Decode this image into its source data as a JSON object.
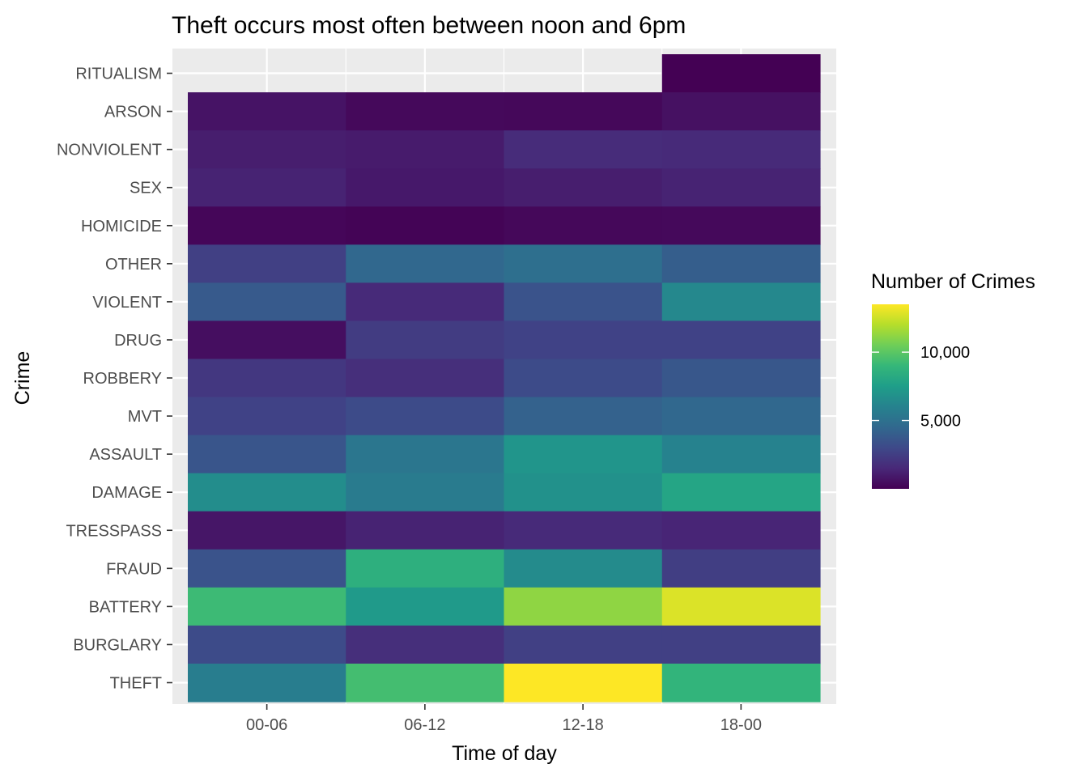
{
  "chart_data": {
    "type": "heatmap",
    "title": "Theft occurs most often between noon and 6pm",
    "xlabel": "Time of day",
    "ylabel": "Crime",
    "x": [
      "00-06",
      "06-12",
      "12-18",
      "18-00"
    ],
    "y": [
      "RITUALISM",
      "ARSON",
      "NONVIOLENT",
      "SEX",
      "HOMICIDE",
      "OTHER",
      "VIOLENT",
      "DRUG",
      "ROBBERY",
      "MVT",
      "ASSAULT",
      "DAMAGE",
      "TRESSPASS",
      "FRAUD",
      "BATTERY",
      "BURGLARY",
      "THEFT"
    ],
    "values": [
      [
        null,
        null,
        null,
        5
      ],
      [
        700,
        300,
        250,
        600
      ],
      [
        1100,
        1000,
        1700,
        1600
      ],
      [
        1300,
        900,
        1100,
        1300
      ],
      [
        200,
        100,
        250,
        300
      ],
      [
        2600,
        4500,
        4900,
        4000
      ],
      [
        3800,
        1600,
        3500,
        6300
      ],
      [
        500,
        2400,
        2700,
        2700
      ],
      [
        2200,
        1800,
        3100,
        3700
      ],
      [
        2700,
        3100,
        4200,
        4500
      ],
      [
        3600,
        5300,
        7000,
        6000
      ],
      [
        6600,
        5600,
        6800,
        7900
      ],
      [
        800,
        1300,
        1600,
        1400
      ],
      [
        3500,
        8500,
        6500,
        2500
      ],
      [
        9200,
        7300,
        11200,
        12800
      ],
      [
        3100,
        1800,
        2600,
        2600
      ],
      [
        5700,
        9400,
        13500,
        8800
      ]
    ],
    "colorbar": {
      "title": "Number of Crimes",
      "min": 0,
      "max": 13500,
      "ticks": [
        5000,
        10000
      ],
      "tick_labels": [
        "5,000",
        "10,000"
      ],
      "colormap": "viridis",
      "colors": [
        "#440154",
        "#482878",
        "#3e4989",
        "#31688e",
        "#26828e",
        "#1f9e89",
        "#35b779",
        "#6ece58",
        "#b5de2b",
        "#fde725"
      ]
    },
    "grid": true,
    "legend": "right",
    "background": "#ebebeb"
  }
}
